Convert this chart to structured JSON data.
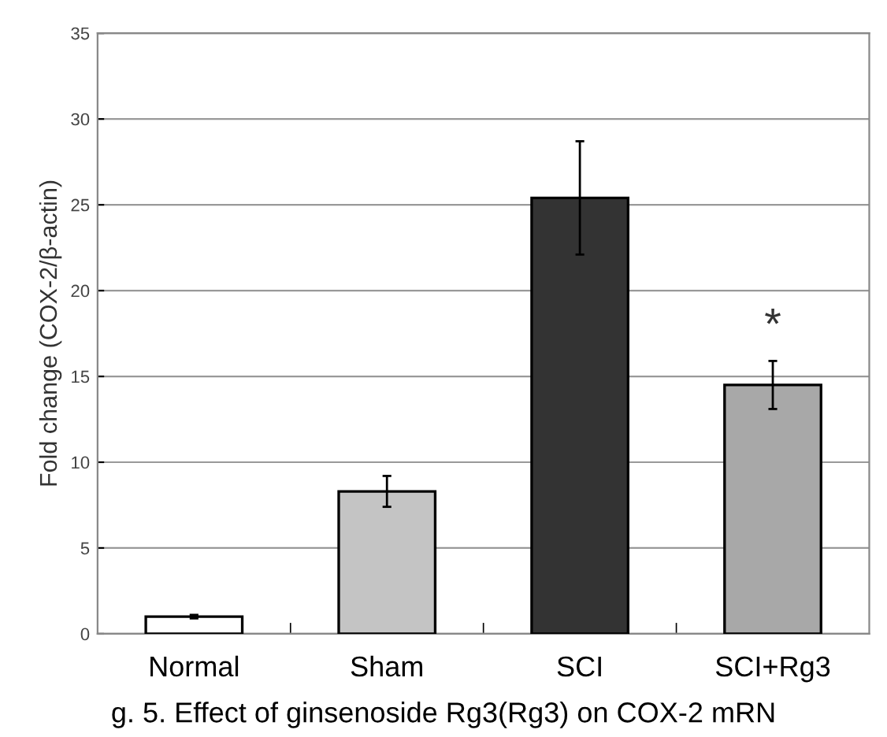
{
  "chart_data": {
    "type": "bar",
    "ylabel": "Fold change (COX-2/β-actin)",
    "categories": [
      "Normal",
      "Sham",
      "SCI",
      "SCI+Rg3"
    ],
    "values": [
      1.0,
      8.3,
      25.4,
      14.5
    ],
    "errors": [
      0.1,
      0.9,
      3.3,
      1.4
    ],
    "colors": [
      "#ffffff",
      "#c4c4c4",
      "#333333",
      "#a8a8a8"
    ],
    "ylim": [
      0,
      35
    ],
    "yticks": [
      0,
      5,
      10,
      15,
      20,
      25,
      30,
      35
    ],
    "grid": "y",
    "annotations": [
      "*",
      "g. 5. Effect of ginsenoside Rg3(Rg3) on COX-2 mRN"
    ]
  }
}
